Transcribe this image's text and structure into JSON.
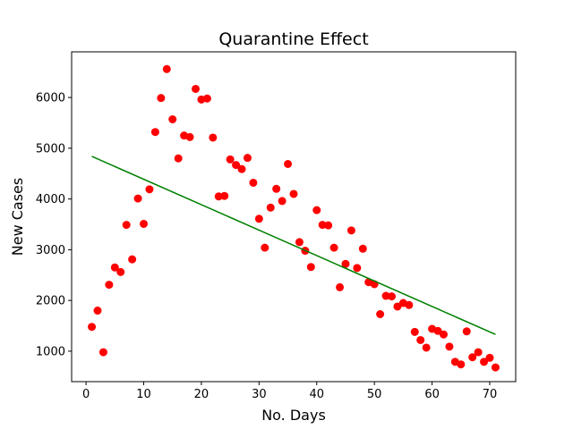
{
  "chart_data": {
    "type": "scatter",
    "title": "Quarantine Effect",
    "xlabel": "No. Days",
    "ylabel": "New Cases",
    "xlim": [
      -2.5,
      74.5
    ],
    "ylim": [
      400,
      6900
    ],
    "xticks": [
      0,
      10,
      20,
      30,
      40,
      50,
      60,
      70
    ],
    "yticks": [
      1000,
      2000,
      3000,
      4000,
      5000,
      6000
    ],
    "grid": false,
    "legend": "none",
    "series": [
      {
        "kind": "scatter",
        "color": "#ff0000",
        "x": [
          1,
          2,
          3,
          4,
          5,
          6,
          7,
          8,
          9,
          10,
          11,
          12,
          13,
          14,
          15,
          16,
          17,
          18,
          19,
          20,
          21,
          22,
          23,
          24,
          25,
          26,
          27,
          28,
          29,
          30,
          31,
          32,
          33,
          34,
          35,
          36,
          37,
          38,
          39,
          40,
          41,
          42,
          43,
          44,
          45,
          46,
          47,
          48,
          49,
          50,
          51,
          52,
          53,
          54,
          55,
          56,
          57,
          58,
          59,
          60,
          61,
          62,
          63,
          64,
          65,
          66,
          67,
          68,
          69,
          70,
          71
        ],
        "y": [
          1480,
          1800,
          980,
          2310,
          2650,
          2560,
          3490,
          2810,
          4010,
          3510,
          4190,
          5320,
          5990,
          6560,
          5570,
          4800,
          5250,
          5220,
          6170,
          5960,
          5980,
          5210,
          4050,
          4060,
          4780,
          4670,
          4590,
          4810,
          4320,
          3610,
          3040,
          3830,
          4200,
          3960,
          4690,
          4100,
          3150,
          2980,
          2660,
          3780,
          3490,
          3480,
          3040,
          2260,
          2720,
          3380,
          2640,
          3020,
          2360,
          2320,
          1730,
          2090,
          2080,
          1880,
          1950,
          1910,
          1380,
          1220,
          1070,
          1440,
          1400,
          1330,
          1090,
          790,
          740,
          1390,
          880,
          980,
          790,
          870,
          680
        ]
      },
      {
        "kind": "line",
        "color": "#008000",
        "x": [
          1,
          71
        ],
        "y": [
          4840,
          1330
        ]
      }
    ]
  }
}
